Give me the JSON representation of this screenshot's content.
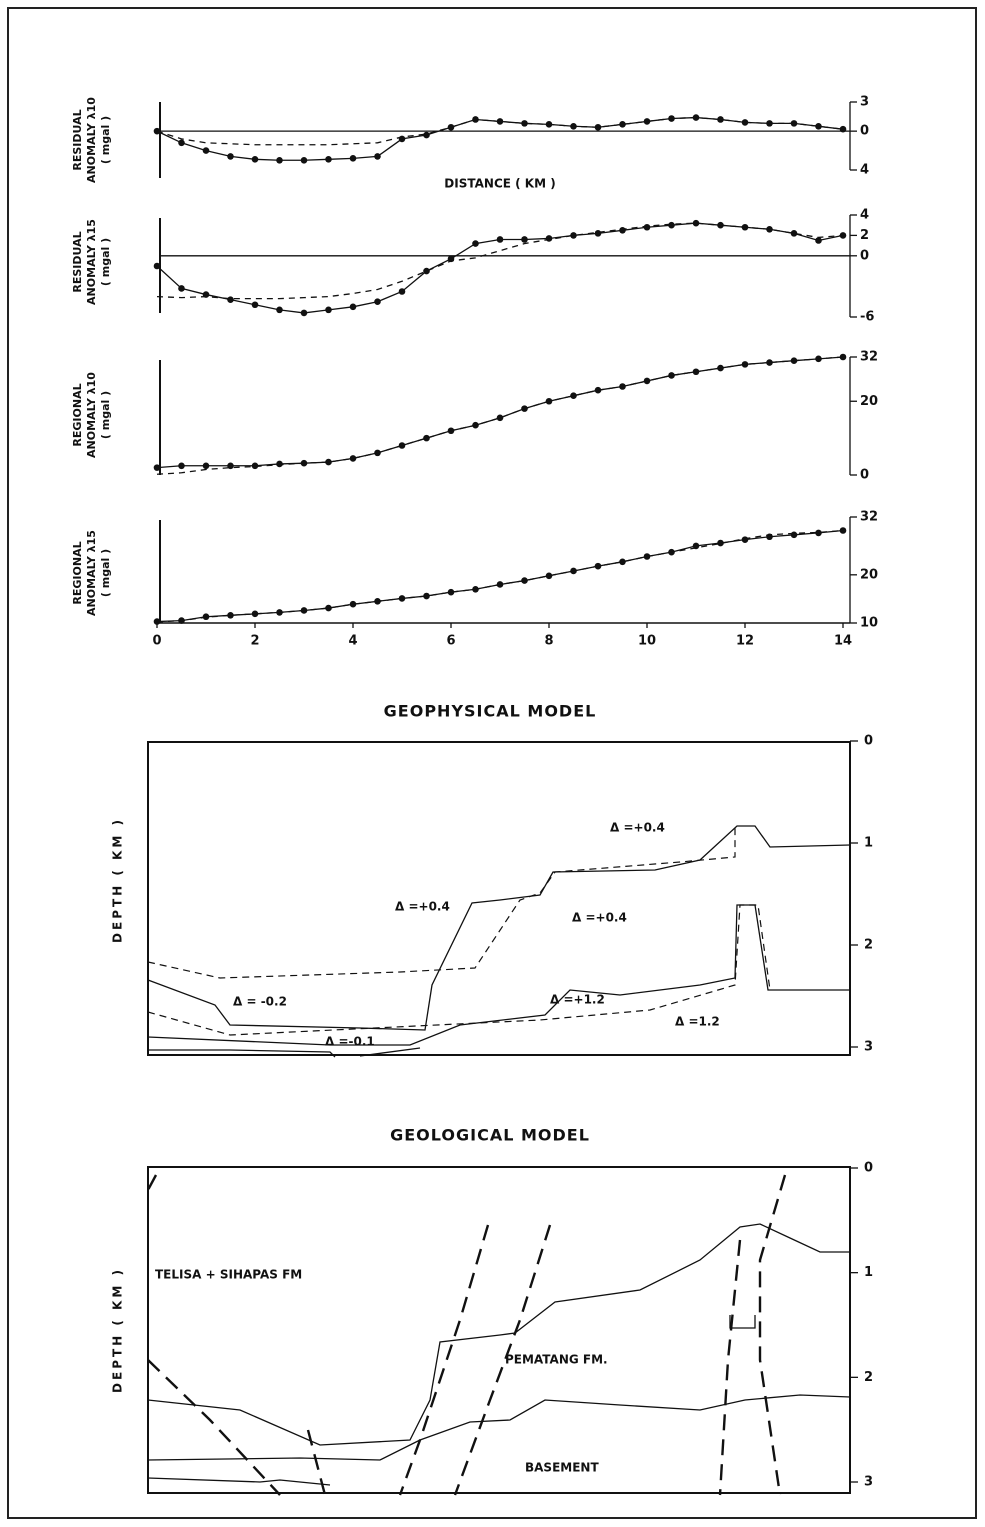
{
  "chart_data": [
    {
      "type": "line",
      "ylabel": [
        "RESIDUAL",
        "ANOMALY λ10",
        "( mgal )"
      ],
      "xlabel": "DISTANCE ( KM )",
      "zeroline": true,
      "xlim": [
        0,
        14
      ],
      "ylim": [
        -4,
        3
      ],
      "yticks": [
        3,
        0,
        {
          "value": -4,
          "label": "4"
        }
      ],
      "x": [
        0,
        0.5,
        1,
        1.5,
        2,
        2.5,
        3,
        3.5,
        4,
        4.5,
        5,
        5.5,
        6,
        6.5,
        7,
        7.5,
        8,
        8.5,
        9,
        9.5,
        10,
        10.5,
        11,
        11.5,
        12,
        12.5,
        13,
        13.5,
        14
      ],
      "series": [
        {
          "color": "#111",
          "marker": "dot",
          "dash": false,
          "values": [
            0,
            -1.2,
            -2,
            -2.6,
            -2.9,
            -3,
            -3,
            -2.9,
            -2.8,
            -2.6,
            -0.8,
            -0.4,
            0.4,
            1.2,
            1,
            0.8,
            0.7,
            0.5,
            0.4,
            0.7,
            1,
            1.3,
            1.4,
            1.2,
            0.9,
            0.8,
            0.8,
            0.5,
            0.2
          ]
        },
        {
          "color": "#111",
          "marker": "none",
          "dash": true,
          "values": [
            0,
            -0.8,
            -1.2,
            -1.3,
            -1.4,
            -1.4,
            -1.4,
            -1.4,
            -1.3,
            -1.2,
            -0.6,
            -0.3,
            0.4,
            1.2,
            1,
            0.8,
            0.7,
            0.5,
            0.4,
            0.7,
            1,
            1.3,
            1.4,
            1.2,
            0.9,
            0.8,
            0.8,
            0.5,
            0.2
          ]
        }
      ]
    },
    {
      "type": "line",
      "ylabel": [
        "RESIDUAL",
        "ANOMALY λ15",
        "( mgal )"
      ],
      "zeroline": true,
      "xlim": [
        0,
        14
      ],
      "ylim": [
        -6,
        4
      ],
      "yticks": [
        4,
        2,
        0,
        -6
      ],
      "x": [
        0,
        0.5,
        1,
        1.5,
        2,
        2.5,
        3,
        3.5,
        4,
        4.5,
        5,
        5.5,
        6,
        6.5,
        7,
        7.5,
        8,
        8.5,
        9,
        9.5,
        10,
        10.5,
        11,
        11.5,
        12,
        12.5,
        13,
        13.5,
        14
      ],
      "series": [
        {
          "color": "#111",
          "marker": "dot",
          "dash": false,
          "values": [
            -1,
            -3.2,
            -3.8,
            -4.3,
            -4.8,
            -5.3,
            -5.6,
            -5.3,
            -5,
            -4.5,
            -3.5,
            -1.5,
            -0.3,
            1.2,
            1.6,
            1.6,
            1.7,
            2,
            2.2,
            2.5,
            2.8,
            3,
            3.2,
            3,
            2.8,
            2.6,
            2.2,
            1.5,
            2
          ]
        },
        {
          "color": "#111",
          "marker": "none",
          "dash": true,
          "values": [
            -4,
            -4.1,
            -4,
            -4.2,
            -4.2,
            -4.2,
            -4.1,
            -4,
            -3.7,
            -3.3,
            -2.5,
            -1.5,
            -0.5,
            -0.2,
            0.5,
            1.2,
            1.6,
            2,
            2.3,
            2.6,
            2.9,
            3.1,
            3.2,
            3,
            2.8,
            2.6,
            2.2,
            1.8,
            2
          ]
        }
      ]
    },
    {
      "type": "line",
      "ylabel": [
        "REGIONAL",
        "ANOMALY λ10",
        "( mgal )"
      ],
      "xlim": [
        0,
        14
      ],
      "ylim": [
        0,
        32
      ],
      "yticks": [
        32,
        20,
        0
      ],
      "x": [
        0,
        0.5,
        1,
        1.5,
        2,
        2.5,
        3,
        3.5,
        4,
        4.5,
        5,
        5.5,
        6,
        6.5,
        7,
        7.5,
        8,
        8.5,
        9,
        9.5,
        10,
        10.5,
        11,
        11.5,
        12,
        12.5,
        13,
        13.5,
        14
      ],
      "series": [
        {
          "color": "#111",
          "marker": "dot",
          "dash": false,
          "values": [
            2,
            2.5,
            2.5,
            2.5,
            2.5,
            3,
            3.2,
            3.5,
            4.5,
            6,
            8,
            10,
            12,
            13.5,
            15.5,
            18,
            20,
            21.5,
            23,
            24,
            25.5,
            27,
            28,
            29,
            30,
            30.5,
            31,
            31.5,
            32
          ]
        },
        {
          "color": "#111",
          "marker": "none",
          "dash": true,
          "values": [
            0.2,
            0.6,
            1.5,
            2,
            2.3,
            2.8,
            3.2,
            3.5,
            4.5,
            6,
            8,
            10,
            12,
            13.5,
            15.5,
            18,
            20,
            21.5,
            23,
            24,
            25.5,
            27,
            28,
            29,
            30,
            30.5,
            31,
            31.5,
            32
          ]
        }
      ]
    },
    {
      "type": "line",
      "ylabel": [
        "REGIONAL",
        "ANOMALY λ15",
        "( mgal )"
      ],
      "xlim": [
        0,
        14
      ],
      "ylim": [
        10,
        32
      ],
      "yticks": [
        32,
        20,
        10
      ],
      "xticks": [
        0,
        2,
        4,
        6,
        8,
        10,
        12,
        14
      ],
      "x": [
        0,
        0.5,
        1,
        1.5,
        2,
        2.5,
        3,
        3.5,
        4,
        4.5,
        5,
        5.5,
        6,
        6.5,
        7,
        7.5,
        8,
        8.5,
        9,
        9.5,
        10,
        10.5,
        11,
        11.5,
        12,
        12.5,
        13,
        13.5,
        14
      ],
      "series": [
        {
          "color": "#111",
          "marker": "dot",
          "dash": false,
          "values": [
            10.3,
            10.5,
            11.3,
            11.6,
            11.9,
            12.2,
            12.6,
            13.1,
            13.9,
            14.5,
            15.1,
            15.6,
            16.4,
            17,
            18,
            18.8,
            19.8,
            20.8,
            21.8,
            22.7,
            23.8,
            24.7,
            26,
            26.6,
            27.3,
            27.9,
            28.3,
            28.7,
            29.2
          ]
        },
        {
          "color": "#111",
          "marker": "none",
          "dash": true,
          "values": [
            10.2,
            10.5,
            11.2,
            11.6,
            11.9,
            12.2,
            12.6,
            13.1,
            13.9,
            14.5,
            15.1,
            15.6,
            16.4,
            17,
            18,
            18.8,
            19.8,
            20.8,
            21.8,
            22.7,
            23.8,
            24.7,
            25.6,
            26.5,
            27.5,
            28.3,
            28.6,
            28.8,
            29.2
          ]
        }
      ]
    },
    {
      "type": "section",
      "title": "GEOPHYSICAL MODEL",
      "ylabel": [
        "DEPTH ( KM )"
      ],
      "ylim": [
        0,
        3
      ],
      "yreverse": true,
      "yticks": [
        0,
        1,
        2,
        3
      ],
      "labels": [
        "Δ =+0.4",
        "Δ =+0.4",
        "Δ =+0.4",
        "Δ = -0.2",
        "Δ =-0.1",
        "Δ =+1.2",
        "Δ =1.2"
      ]
    },
    {
      "type": "section",
      "title": "GEOLOGICAL MODEL",
      "ylabel": [
        "DEPTH ( KM )"
      ],
      "ylim": [
        0,
        3
      ],
      "yreverse": true,
      "yticks": [
        0,
        1,
        2,
        3
      ],
      "labels": [
        "TELISA + SIHAPAS FM",
        "PEMATANG FM.",
        "BASEMENT"
      ]
    }
  ]
}
